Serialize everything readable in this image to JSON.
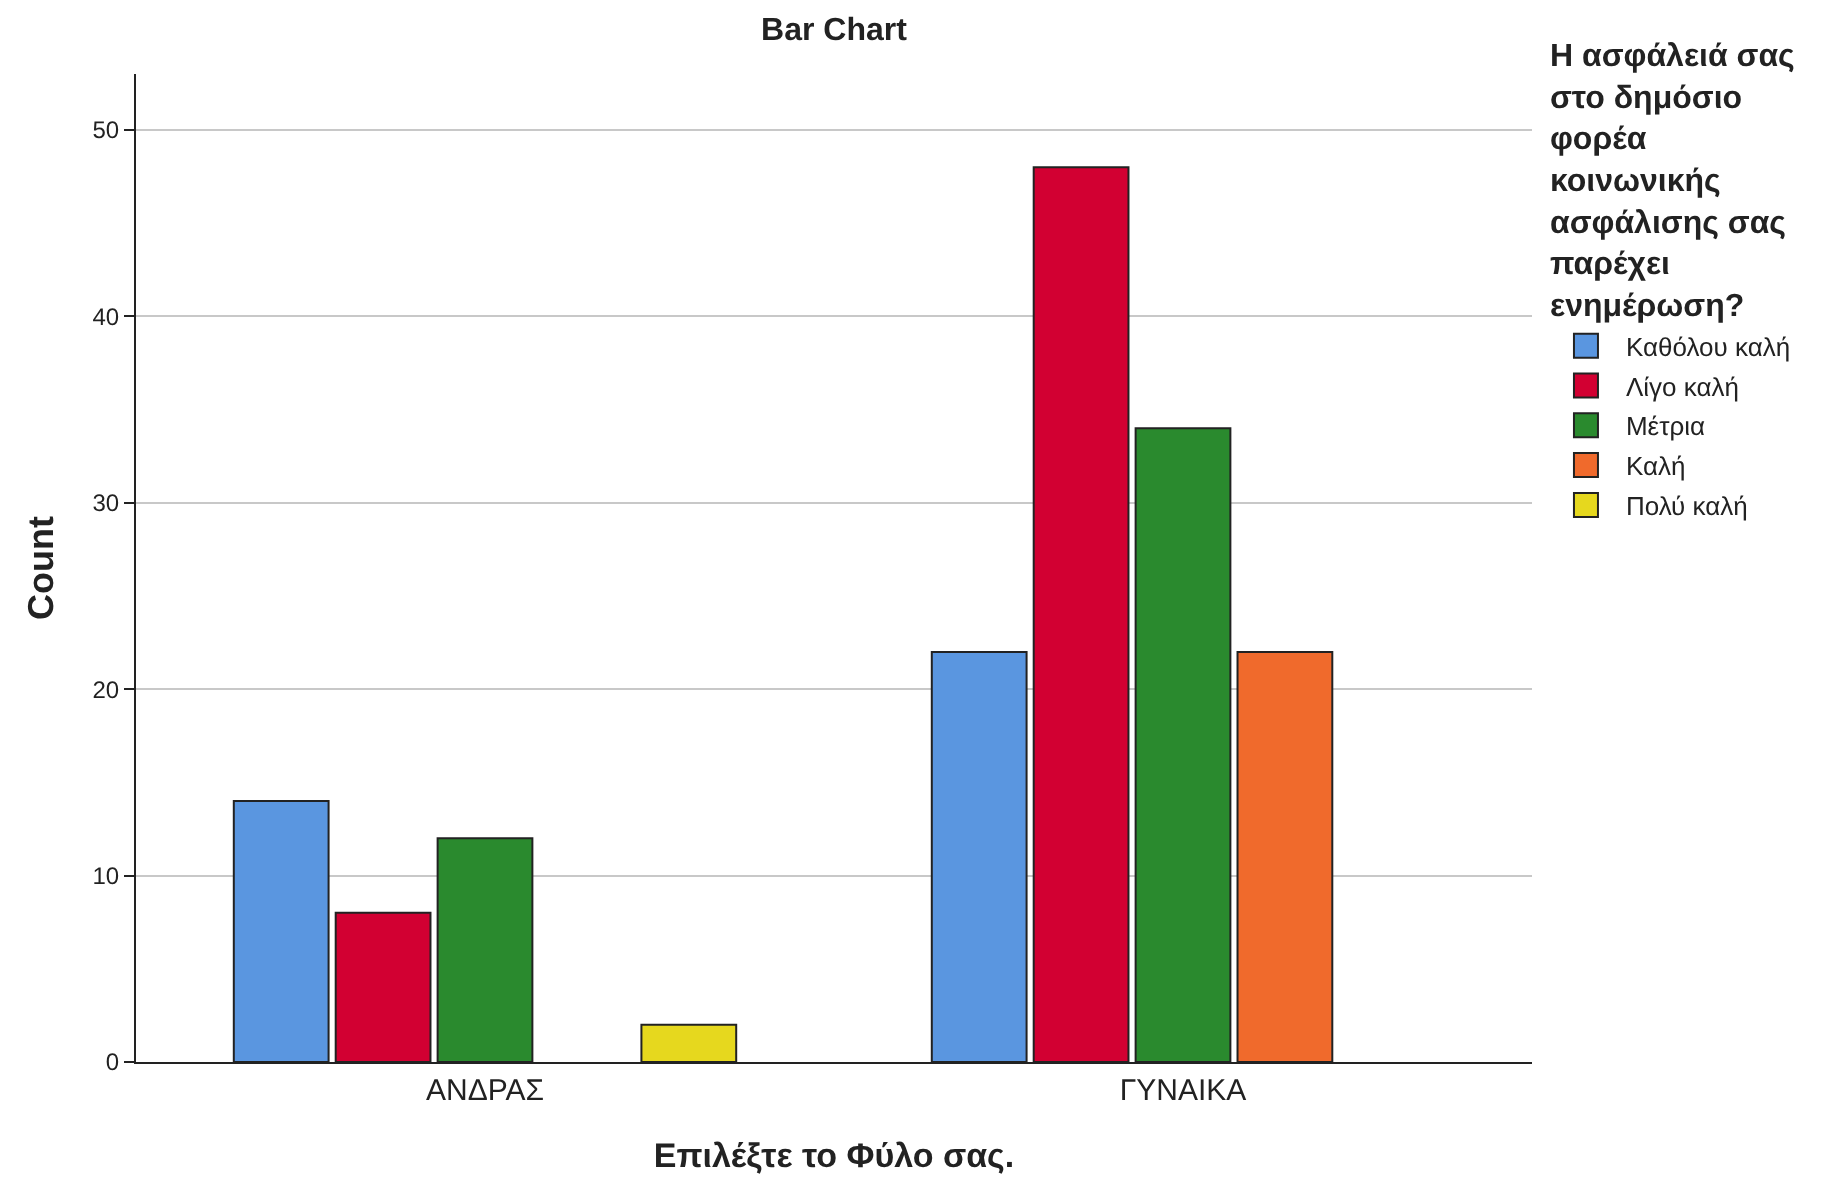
{
  "chart_data": {
    "type": "bar",
    "title": "Bar Chart",
    "xlabel": "Επιλέξτε το Φύλο σας.",
    "ylabel": "Count",
    "legend_title": "Η ασφάλειά σας στο δημόσιο φορέα κοινωνικής ασφάλισης σας παρέχει ενημέρωση?",
    "categories": [
      "ΑΝΔΡΑΣ",
      "ΓΥΝΑΙΚΑ"
    ],
    "series": [
      {
        "name": "Καθόλου καλή",
        "color": "#5a96e0",
        "values": [
          14,
          22
        ]
      },
      {
        "name": "Λίγο καλή",
        "color": "#d20032",
        "values": [
          8,
          48
        ]
      },
      {
        "name": "Μέτρια",
        "color": "#2a8a2e",
        "values": [
          12,
          34
        ]
      },
      {
        "name": "Καλή",
        "color": "#f06a2c",
        "values": [
          null,
          22
        ]
      },
      {
        "name": "Πολύ καλή",
        "color": "#e6d81e",
        "values": [
          2,
          null
        ]
      }
    ],
    "ylim": [
      0,
      53
    ],
    "yticks": [
      0,
      10,
      20,
      30,
      40,
      50
    ],
    "grid": "y",
    "legend": "top right"
  }
}
